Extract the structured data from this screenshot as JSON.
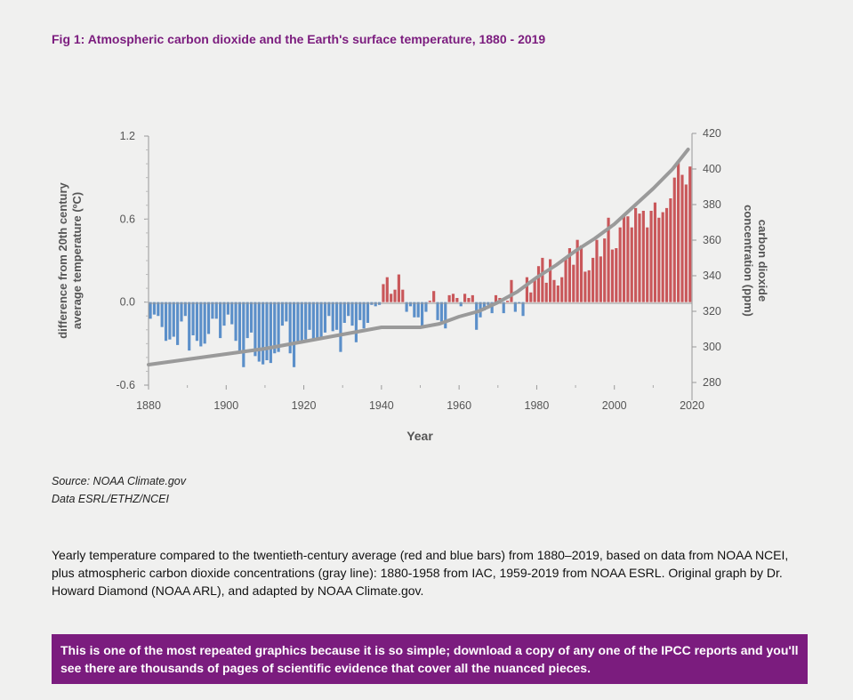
{
  "figure": {
    "title": "Fig 1: Atmospheric carbon dioxide and the Earth's surface temperature, 1880 - 2019"
  },
  "source": {
    "line1": "Source: NOAA Climate.gov",
    "line2": "Data ESRL/ETHZ/NCEI"
  },
  "caption": "Yearly temperature compared to the twentieth-century average (red and blue bars) from 1880–2019, based on data from NOAA NCEI, plus atmospheric carbon dioxide concentrations (gray line): 1880-1958 from IAC, 1959-2019 from NOAA ESRL. Original graph by Dr. Howard Diamond (NOAA ARL), and adapted by NOAA Climate.gov.",
  "callout": "This is one of the most repeated graphics because it is so simple; download a copy of any one of the IPCC reports and you'll see there are thousands of pages of scientific evidence that cover all the nuanced pieces.",
  "colors": {
    "accent": "#7b1c7e",
    "positive_bar": "#c9575a",
    "negative_bar": "#5b8fc9",
    "co2_line": "#9a9a9a",
    "background": "#f0f0ef"
  },
  "chart_data": {
    "type": "bar",
    "xlabel": "Year",
    "ylabel": "difference from 20th century average temperature (ºC)",
    "y2label": "carbon dioxide concentration (ppm)",
    "xlim": [
      1880,
      2020
    ],
    "ylim": [
      -0.6,
      1.2
    ],
    "y2lim": [
      280,
      420
    ],
    "x_ticks": [
      1880,
      1900,
      1920,
      1940,
      1960,
      1980,
      2000,
      2020
    ],
    "y_ticks": [
      "1.2",
      "0.6",
      "0.0",
      "-0.6"
    ],
    "y2_ticks": [
      420,
      400,
      380,
      360,
      340,
      320,
      300,
      280
    ],
    "grid": false,
    "series": [
      {
        "type": "bar",
        "x_start": 1880,
        "values": [
          -0.12,
          -0.09,
          -0.1,
          -0.18,
          -0.28,
          -0.27,
          -0.25,
          -0.31,
          -0.14,
          -0.1,
          -0.35,
          -0.24,
          -0.28,
          -0.32,
          -0.3,
          -0.23,
          -0.12,
          -0.12,
          -0.26,
          -0.17,
          -0.09,
          -0.16,
          -0.28,
          -0.37,
          -0.47,
          -0.26,
          -0.22,
          -0.39,
          -0.43,
          -0.45,
          -0.42,
          -0.44,
          -0.37,
          -0.36,
          -0.17,
          -0.14,
          -0.37,
          -0.47,
          -0.3,
          -0.28,
          -0.27,
          -0.2,
          -0.28,
          -0.26,
          -0.27,
          -0.22,
          -0.1,
          -0.21,
          -0.2,
          -0.36,
          -0.15,
          -0.1,
          -0.17,
          -0.29,
          -0.13,
          -0.19,
          -0.15,
          -0.02,
          -0.03,
          -0.02,
          0.13,
          0.18,
          0.06,
          0.09,
          0.2,
          0.09,
          -0.07,
          -0.03,
          -0.11,
          -0.11,
          -0.17,
          -0.07,
          0.01,
          0.08,
          -0.13,
          -0.14,
          -0.19,
          0.05,
          0.06,
          0.03,
          -0.03,
          0.06,
          0.03,
          0.05,
          -0.2,
          -0.11,
          -0.06,
          -0.02,
          -0.08,
          0.05,
          0.03,
          -0.08,
          0.01,
          0.16,
          -0.07,
          -0.01,
          -0.1,
          0.18,
          0.07,
          0.16,
          0.26,
          0.32,
          0.14,
          0.31,
          0.16,
          0.12,
          0.18,
          0.32,
          0.39,
          0.27,
          0.45,
          0.41,
          0.22,
          0.23,
          0.32,
          0.45,
          0.33,
          0.46,
          0.61,
          0.38,
          0.39,
          0.54,
          0.63,
          0.62,
          0.54,
          0.68,
          0.64,
          0.66,
          0.54,
          0.66,
          0.72,
          0.61,
          0.65,
          0.68,
          0.75,
          0.9,
          1.01,
          0.92,
          0.85,
          0.98
        ]
      },
      {
        "type": "line",
        "name": "CO2",
        "x": [
          1880,
          1890,
          1900,
          1910,
          1920,
          1930,
          1940,
          1950,
          1955,
          1960,
          1965,
          1970,
          1975,
          1980,
          1985,
          1990,
          1995,
          2000,
          2005,
          2010,
          2015,
          2019
        ],
        "values": [
          290,
          293,
          296,
          299,
          303,
          307,
          311,
          311,
          313,
          317,
          320,
          325,
          331,
          339,
          346,
          354,
          361,
          369,
          379,
          389,
          400,
          411
        ]
      }
    ]
  }
}
